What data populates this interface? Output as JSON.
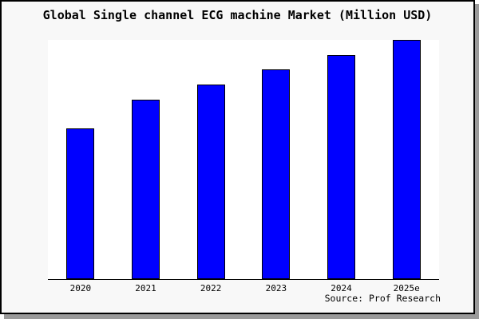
{
  "chart_data": {
    "type": "bar",
    "title": "Global Single channel ECG machine Market (Million USD)",
    "categories": [
      "2020",
      "2021",
      "2022",
      "2023",
      "2024",
      "2025e"
    ],
    "values": [
      63,
      75,
      81.5,
      87.8,
      93.8,
      100
    ],
    "values_note": "relative units estimated from bar heights; y-axis has no tick labels in the image",
    "xlabel": "",
    "ylabel": "",
    "ylim": [
      0,
      100
    ],
    "grid": false,
    "legend": false,
    "y_axis_labels_visible": false,
    "colors": {
      "bar_fill": "#0000ff",
      "bar_edge": "#000000",
      "plot_background": "#ffffff",
      "figure_background": "#f8f8f8",
      "frame_border": "#000000",
      "drop_shadow": "#9a9a9a",
      "text": "#000000"
    }
  },
  "source": {
    "label": "Source: Prof Research"
  }
}
